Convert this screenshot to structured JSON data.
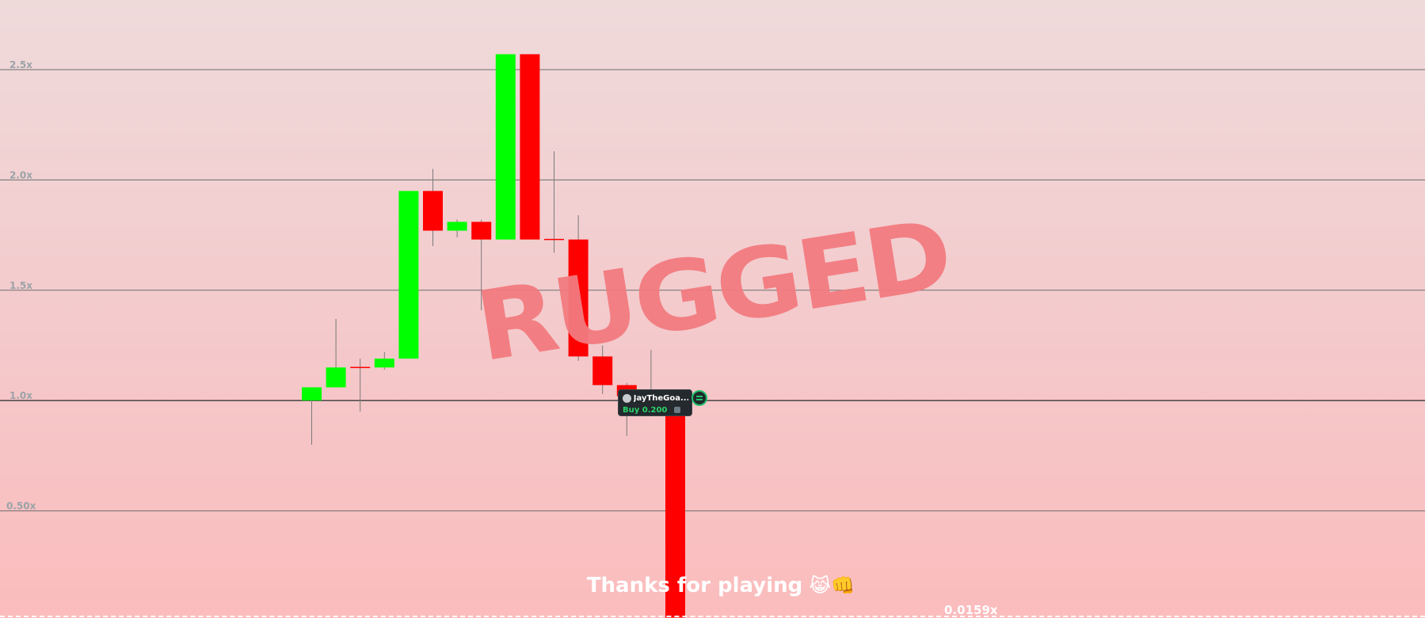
{
  "chart_data": {
    "type": "candlestick",
    "y_scale": "linear",
    "ylim": [
      0.0,
      2.82
    ],
    "y_ticks": [
      {
        "value": 2.5,
        "label": "2.5x"
      },
      {
        "value": 2.0,
        "label": "2.0x"
      },
      {
        "value": 1.5,
        "label": "1.5x"
      },
      {
        "value": 1.0,
        "label": "1.0x"
      },
      {
        "value": 0.5,
        "label": "0.50x"
      }
    ],
    "candles": [
      {
        "open": 1.0,
        "close": 1.06,
        "high": 1.06,
        "low": 0.8
      },
      {
        "open": 1.06,
        "close": 1.15,
        "high": 1.37,
        "low": 1.06
      },
      {
        "open": 1.15,
        "close": 1.15,
        "high": 1.19,
        "low": 0.95
      },
      {
        "open": 1.15,
        "close": 1.19,
        "high": 1.22,
        "low": 1.14
      },
      {
        "open": 1.19,
        "close": 1.95,
        "high": 1.95,
        "low": 1.19
      },
      {
        "open": 1.95,
        "close": 1.77,
        "high": 2.05,
        "low": 1.7
      },
      {
        "open": 1.77,
        "close": 1.81,
        "high": 1.82,
        "low": 1.74
      },
      {
        "open": 1.81,
        "close": 1.73,
        "high": 1.82,
        "low": 1.41
      },
      {
        "open": 1.73,
        "close": 2.57,
        "high": 2.57,
        "low": 1.73
      },
      {
        "open": 2.57,
        "close": 1.73,
        "high": 2.57,
        "low": 1.73
      },
      {
        "open": 1.73,
        "close": 1.73,
        "high": 2.13,
        "low": 1.67
      },
      {
        "open": 1.73,
        "close": 1.2,
        "high": 1.84,
        "low": 1.18
      },
      {
        "open": 1.2,
        "close": 1.07,
        "high": 1.25,
        "low": 1.03
      },
      {
        "open": 1.07,
        "close": 1.02,
        "high": 1.08,
        "low": 0.84
      },
      {
        "open": 1.02,
        "close": 1.02,
        "high": 1.23,
        "low": 1.0
      },
      {
        "open": 1.0,
        "close": 0.0159,
        "high": 1.0,
        "low": 0.0159
      }
    ],
    "up_color": "#00ff00",
    "down_color": "#ff0000",
    "final_multiplier": "0.0159x",
    "status_stamp": "RUGGED",
    "message": "Thanks for playing",
    "message_emojis": "😹👊",
    "trade_marker": {
      "username": "JayTheGoa...",
      "action": "Buy 0.200",
      "action_color": "#2bd46a"
    }
  }
}
